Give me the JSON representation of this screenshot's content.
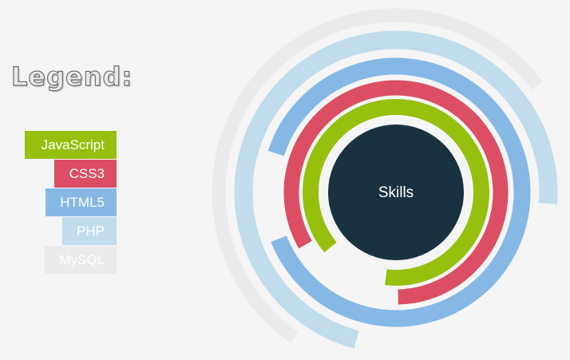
{
  "legend": {
    "title": "Legend:"
  },
  "chart_data": {
    "type": "radial-bar",
    "center_label": "Skills",
    "center_color": "#1a3240",
    "series": [
      {
        "name": "JavaScript",
        "value": 88,
        "color": "#97bf0d"
      },
      {
        "name": "CSS3",
        "value": 83,
        "color": "#dc4e63"
      },
      {
        "name": "HTML5",
        "value": 89,
        "color": "#86b8e6"
      },
      {
        "name": "PHP",
        "value": 72,
        "color": "#c1dcea"
      },
      {
        "name": "MySQL",
        "value": 55,
        "color": "#ebeaec"
      }
    ],
    "max": 100
  }
}
